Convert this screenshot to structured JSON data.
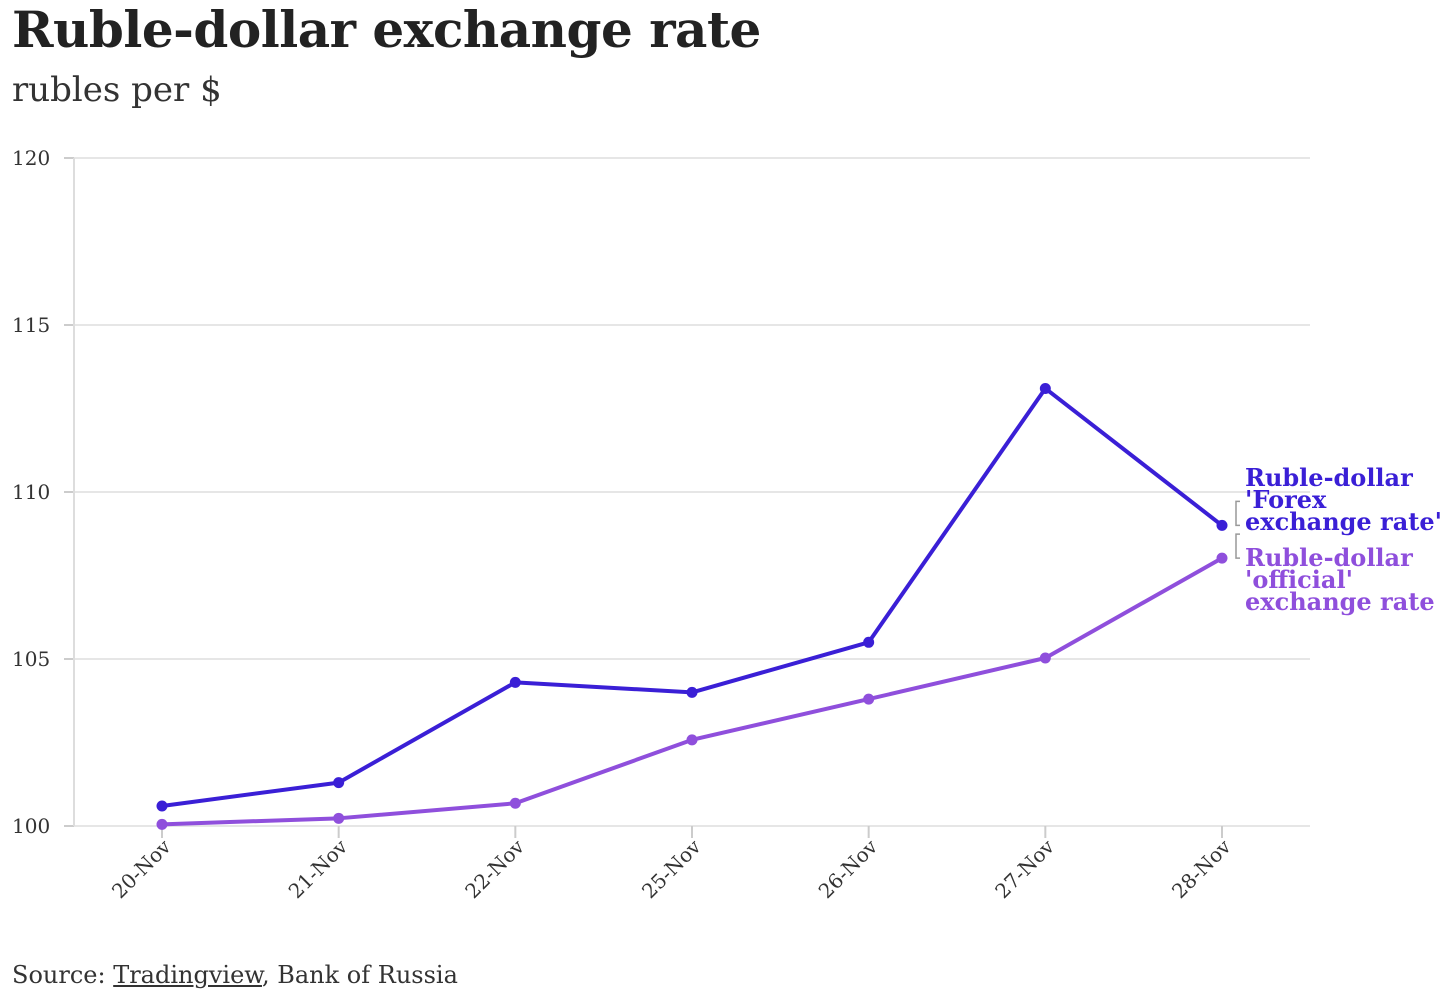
{
  "title": "Ruble-dollar exchange rate",
  "subtitle": "rubles per $",
  "source": {
    "prefix": "Source: ",
    "link_text": "Tradingview",
    "suffix": ", Bank of Russia"
  },
  "colors": {
    "forex": "#3a1fd6",
    "official": "#8f4fdc",
    "grid": "#e6e6e6",
    "bracket": "#999999"
  },
  "chart_data": {
    "type": "line",
    "title": "Ruble-dollar exchange rate",
    "subtitle": "rubles per $",
    "xlabel": "",
    "ylabel": "",
    "categories": [
      "20-Nov",
      "21-Nov",
      "22-Nov",
      "25-Nov",
      "26-Nov",
      "27-Nov",
      "28-Nov"
    ],
    "ylim": [
      100,
      120
    ],
    "yticks": [
      100,
      105,
      110,
      115,
      120
    ],
    "grid": true,
    "legend": "direct labels at line ends",
    "series": [
      {
        "name": "Ruble-dollar 'Forex exchange rate'",
        "label_lines": [
          "Ruble-dollar",
          "'Forex",
          "exchange rate'"
        ],
        "color": "#3a1fd6",
        "values": [
          100.6,
          101.3,
          104.3,
          104.0,
          105.5,
          113.1,
          109.0
        ]
      },
      {
        "name": "Ruble-dollar 'official' exchange rate",
        "label_lines": [
          "Ruble-dollar",
          "'official'",
          "exchange rate"
        ],
        "color": "#8f4fdc",
        "values": [
          100.05,
          100.23,
          100.68,
          102.58,
          103.8,
          105.03,
          108.02
        ]
      }
    ]
  }
}
